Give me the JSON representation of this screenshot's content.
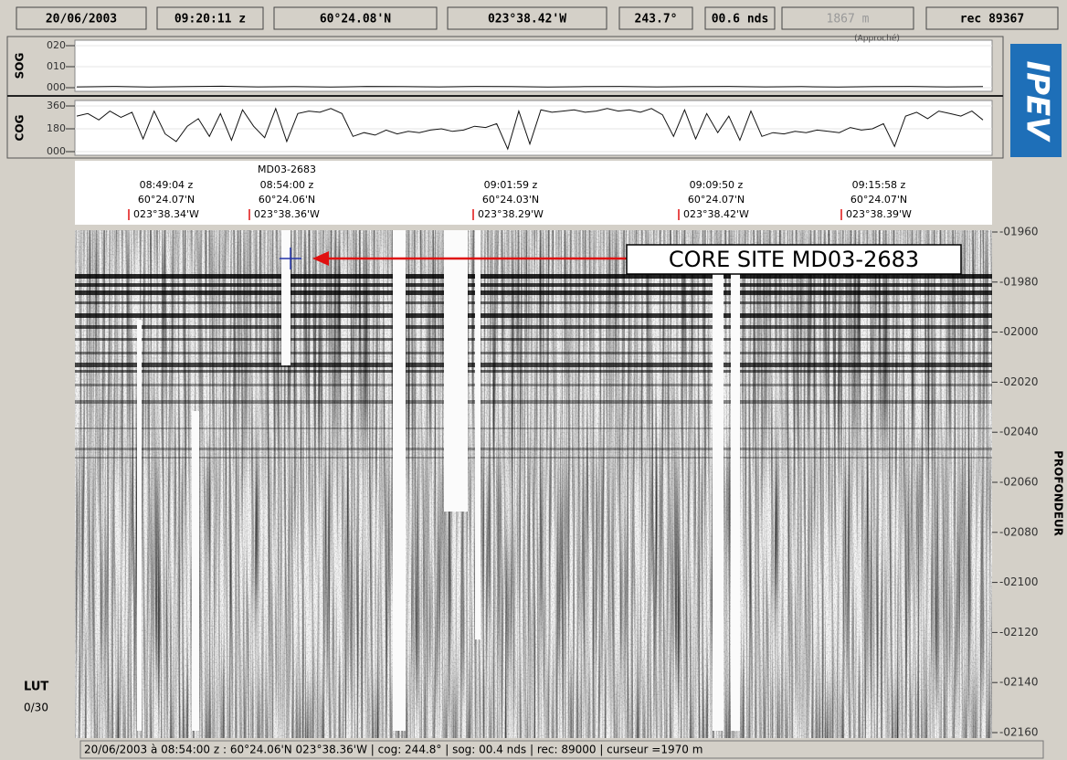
{
  "header": {
    "fields": [
      "20/06/2003",
      "09:20:11 z",
      "60°24.08'N",
      "023°38.42'W",
      "243.7°",
      "00.6 nds",
      "1867 m",
      "rec 89367"
    ],
    "approx_note": "(Approché)"
  },
  "logo": "IPEV",
  "panels": [
    {
      "label": "SOG",
      "ylim": [
        0,
        20
      ],
      "yticks": [
        {
          "value": 20,
          "label": "020"
        },
        {
          "value": 10,
          "label": "010"
        },
        {
          "value": 0,
          "label": "000"
        }
      ],
      "values": [
        0.4,
        0.6,
        0.3,
        0.5,
        0.7,
        0.4,
        0.5,
        0.3,
        0.6,
        0.5,
        0.4,
        0.6,
        0.5,
        0.3,
        0.5,
        0.6,
        0.4,
        0.5,
        0.6,
        0.4,
        0.5,
        0.3,
        0.5,
        0.6,
        0.4,
        0.5
      ]
    },
    {
      "label": "COG",
      "ylim": [
        0,
        360
      ],
      "yticks": [
        {
          "value": 360,
          "label": "360"
        },
        {
          "value": 180,
          "label": "180"
        },
        {
          "value": 0,
          "label": "000"
        }
      ],
      "values": [
        280,
        300,
        250,
        320,
        270,
        310,
        100,
        320,
        140,
        80,
        200,
        260,
        120,
        300,
        90,
        330,
        200,
        110,
        340,
        80,
        300,
        320,
        310,
        340,
        300,
        120,
        150,
        130,
        170,
        140,
        160,
        150,
        170,
        180,
        160,
        170,
        200,
        190,
        220,
        20,
        320,
        60,
        330,
        310,
        320,
        330,
        310,
        320,
        340,
        320,
        330,
        310,
        340,
        290,
        120,
        330,
        100,
        300,
        150,
        280,
        90,
        320,
        120,
        150,
        140,
        160,
        150,
        170,
        160,
        150,
        190,
        170,
        180,
        220,
        40,
        280,
        310,
        260,
        320,
        300,
        280,
        320,
        250
      ]
    }
  ],
  "fixes": [
    {
      "lines": [
        "08:49:04 z",
        "60°24.07'N",
        "023°38.34'W"
      ]
    },
    {
      "label": "MD03-2683",
      "lines": [
        "08:54:00 z",
        "60°24.06'N",
        "023°38.36'W"
      ]
    },
    {
      "lines": [
        "09:01:59 z",
        "60°24.03'N",
        "023°38.29'W"
      ]
    },
    {
      "lines": [
        "09:09:50 z",
        "60°24.07'N",
        "023°38.42'W"
      ]
    },
    {
      "lines": [
        "09:15:58 z",
        "60°24.07'N",
        "023°38.39'W"
      ]
    }
  ],
  "callout": "CORE SITE MD03-2683",
  "depth_axis": {
    "label": "PROFONDEUR",
    "ylim": [
      -1960,
      -2160
    ],
    "yticks": [
      {
        "value": -1960,
        "label": "-01960"
      },
      {
        "value": -1980,
        "label": "-01980"
      },
      {
        "value": -2000,
        "label": "-02000"
      },
      {
        "value": -2020,
        "label": "-02020"
      },
      {
        "value": -2040,
        "label": "-02040"
      },
      {
        "value": -2060,
        "label": "-02060"
      },
      {
        "value": -2080,
        "label": "-02080"
      },
      {
        "value": -2100,
        "label": "-02100"
      },
      {
        "value": -2120,
        "label": "-02120"
      },
      {
        "value": -2140,
        "label": "-02140"
      },
      {
        "value": -2160,
        "label": "-02160"
      }
    ]
  },
  "lut": {
    "label": "LUT",
    "value": "0/30"
  },
  "status_bar": "20/06/2003 à 08:54:00 z :  60°24.06'N  023°38.36'W | cog: 244.8° | sog: 00.4 nds | rec: 89000 | curseur =1970 m"
}
